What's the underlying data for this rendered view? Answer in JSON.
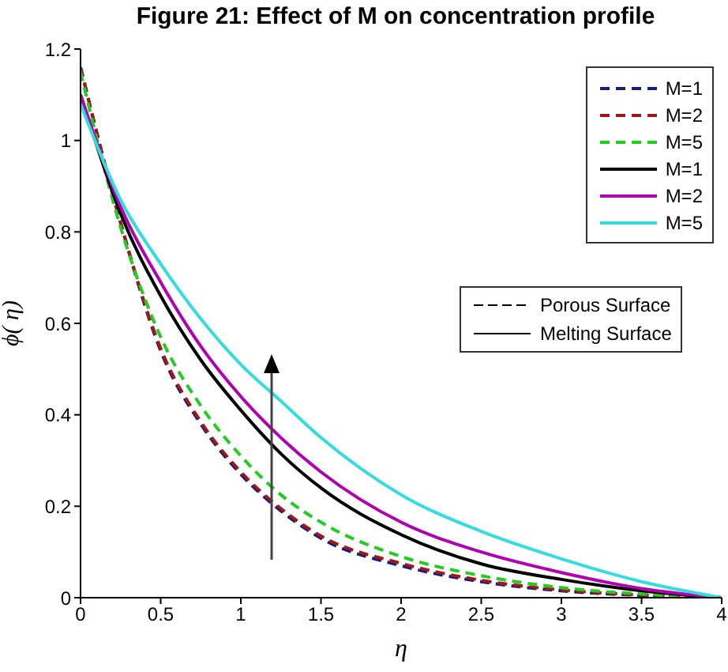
{
  "chart_data": {
    "type": "line",
    "title": "Figure 21: Effect of M on concentration profile",
    "xlabel": "η",
    "ylabel": "ϕ( η)",
    "x": [
      0,
      0.25,
      0.5,
      0.75,
      1,
      1.25,
      1.5,
      2,
      2.5,
      3,
      3.5,
      4
    ],
    "series": [
      {
        "name": "M=1",
        "color": "#1a1a80",
        "line_style": "dashed",
        "values": [
          1.16,
          0.82,
          0.54,
          0.38,
          0.27,
          0.19,
          0.13,
          0.07,
          0.035,
          0.015,
          0.005,
          0
        ]
      },
      {
        "name": "M=2",
        "color": "#a01818",
        "line_style": "dashed",
        "values": [
          1.16,
          0.82,
          0.545,
          0.385,
          0.275,
          0.195,
          0.135,
          0.075,
          0.038,
          0.017,
          0.006,
          0
        ]
      },
      {
        "name": "M=5",
        "color": "#22cc22",
        "line_style": "dashed",
        "values": [
          1.15,
          0.81,
          0.57,
          0.42,
          0.31,
          0.225,
          0.165,
          0.09,
          0.048,
          0.022,
          0.008,
          0
        ]
      },
      {
        "name": "M=1",
        "color": "#000000",
        "line_style": "solid",
        "values": [
          1.1,
          0.84,
          0.66,
          0.52,
          0.41,
          0.315,
          0.24,
          0.138,
          0.074,
          0.04,
          0.015,
          0
        ]
      },
      {
        "name": "M=2",
        "color": "#b000b0",
        "line_style": "solid",
        "values": [
          1.1,
          0.855,
          0.69,
          0.55,
          0.44,
          0.35,
          0.275,
          0.165,
          0.1,
          0.055,
          0.02,
          0
        ]
      },
      {
        "name": "M=5",
        "color": "#33dddd",
        "line_style": "solid",
        "values": [
          1.08,
          0.87,
          0.73,
          0.61,
          0.51,
          0.43,
          0.35,
          0.225,
          0.145,
          0.085,
          0.035,
          0
        ]
      }
    ],
    "xlim": [
      0,
      4
    ],
    "xticks": [
      0,
      0.5,
      1,
      1.5,
      2,
      2.5,
      3,
      3.5,
      4
    ],
    "ylim": [
      0,
      1.2
    ],
    "yticks": [
      0,
      0.2,
      0.4,
      0.6,
      0.8,
      1,
      1.2
    ],
    "grid": false,
    "legend": "top right",
    "marker": "none",
    "annotations": [
      "Porous Surface",
      "Melting Surface"
    ]
  }
}
